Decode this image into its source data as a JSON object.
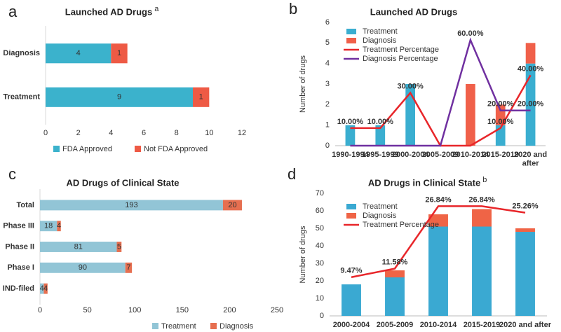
{
  "chart_data": [
    {
      "type": "bar",
      "orientation": "horizontal",
      "panel_label": "a",
      "title": "Launched AD Drugs",
      "title_superscript": "a",
      "categories": [
        "Diagnosis",
        "Treatment"
      ],
      "series": [
        {
          "name": "FDA Approved",
          "color": "#3bb2cc",
          "values": [
            4,
            9
          ]
        },
        {
          "name": "Not FDA Approved",
          "color": "#ee5a45",
          "values": [
            1,
            1
          ]
        }
      ],
      "xlim": [
        0,
        12
      ],
      "xticks": [
        0,
        2,
        4,
        6,
        8,
        10,
        12
      ],
      "grid": false,
      "show_values": true,
      "legend": "bottom"
    },
    {
      "type": "combo",
      "panel_label": "b",
      "title": "Launched AD Drugs",
      "categories": [
        "1990-1994",
        "1995-1999",
        "2000-2004",
        "2005-2009",
        "2010-2014",
        "2015-2019",
        "2020 and after"
      ],
      "ylabel": "Number of drugs",
      "series": [
        {
          "name": "Treatment",
          "type": "bar",
          "color": "#3aaed0",
          "values": [
            1,
            1,
            3,
            0,
            0,
            1,
            4
          ]
        },
        {
          "name": "Diagnosis",
          "type": "bar",
          "color": "#f0604a",
          "values": [
            0,
            0,
            0,
            0,
            3,
            1,
            1
          ]
        },
        {
          "name": "Treatment Percentage",
          "type": "line",
          "axis": "y2",
          "color": "#e8262a",
          "label_color": "#222222",
          "values": [
            10,
            10,
            30,
            0,
            0,
            10,
            40
          ],
          "value_labels": [
            "10.00%",
            "10.00%",
            "30.00%",
            null,
            null,
            "10.00%",
            "40.00%"
          ]
        },
        {
          "name": "Diagnosis Percentage",
          "type": "line",
          "axis": "y2",
          "color": "#7030a0",
          "label_color": "#7030a0",
          "values": [
            0,
            0,
            0,
            0,
            60,
            20,
            20
          ],
          "value_labels": [
            null,
            null,
            null,
            null,
            "60.00%",
            "20.00%",
            "20.00%"
          ]
        }
      ],
      "ylim": [
        0,
        6
      ],
      "yticks": [
        0,
        1,
        2,
        3,
        4,
        5,
        6
      ],
      "y2lim": [
        0,
        70
      ],
      "grid": false,
      "legend": "top-left"
    },
    {
      "type": "bar",
      "orientation": "horizontal",
      "panel_label": "c",
      "title": "AD Drugs of Clinical State",
      "categories": [
        "Total",
        "Phase III",
        "Phase II",
        "Phase I",
        "IND-filed"
      ],
      "series": [
        {
          "name": "Treatment",
          "color": "#92c5d6",
          "values": [
            193,
            18,
            81,
            90,
            4
          ]
        },
        {
          "name": "Diagnosis",
          "color": "#e66f50",
          "values": [
            20,
            4,
            5,
            7,
            4
          ]
        }
      ],
      "xlim": [
        0,
        250
      ],
      "xticks": [
        0,
        50,
        100,
        150,
        200,
        250
      ],
      "grid": false,
      "show_values": true,
      "legend": "bottom"
    },
    {
      "type": "combo",
      "panel_label": "d",
      "title": "AD Drugs in Clinical State",
      "title_superscript": "b",
      "categories": [
        "2000-2004",
        "2005-2009",
        "2010-2014",
        "2015-2019",
        "2020 and after"
      ],
      "ylabel": "Number of drugs",
      "series": [
        {
          "name": "Treatment",
          "type": "bar",
          "color": "#3aa9d2",
          "values": [
            18,
            22,
            51,
            51,
            48
          ]
        },
        {
          "name": "Diagnosis",
          "type": "bar",
          "color": "#ef6446",
          "values": [
            0,
            4,
            7,
            10,
            2
          ]
        },
        {
          "name": "Treatment Percentage",
          "type": "line",
          "axis": "y2",
          "color": "#e8262a",
          "label_color": "#444444",
          "values": [
            9.47,
            11.58,
            26.84,
            26.84,
            25.26
          ],
          "value_labels": [
            "9.47%",
            "11.58%",
            "26.84%",
            "26.84%",
            "25.26%"
          ]
        }
      ],
      "ylim": [
        0,
        70
      ],
      "yticks": [
        0,
        10,
        20,
        30,
        40,
        50,
        60,
        70
      ],
      "y2lim": [
        0,
        30
      ],
      "grid": false,
      "legend": "top-left"
    }
  ]
}
